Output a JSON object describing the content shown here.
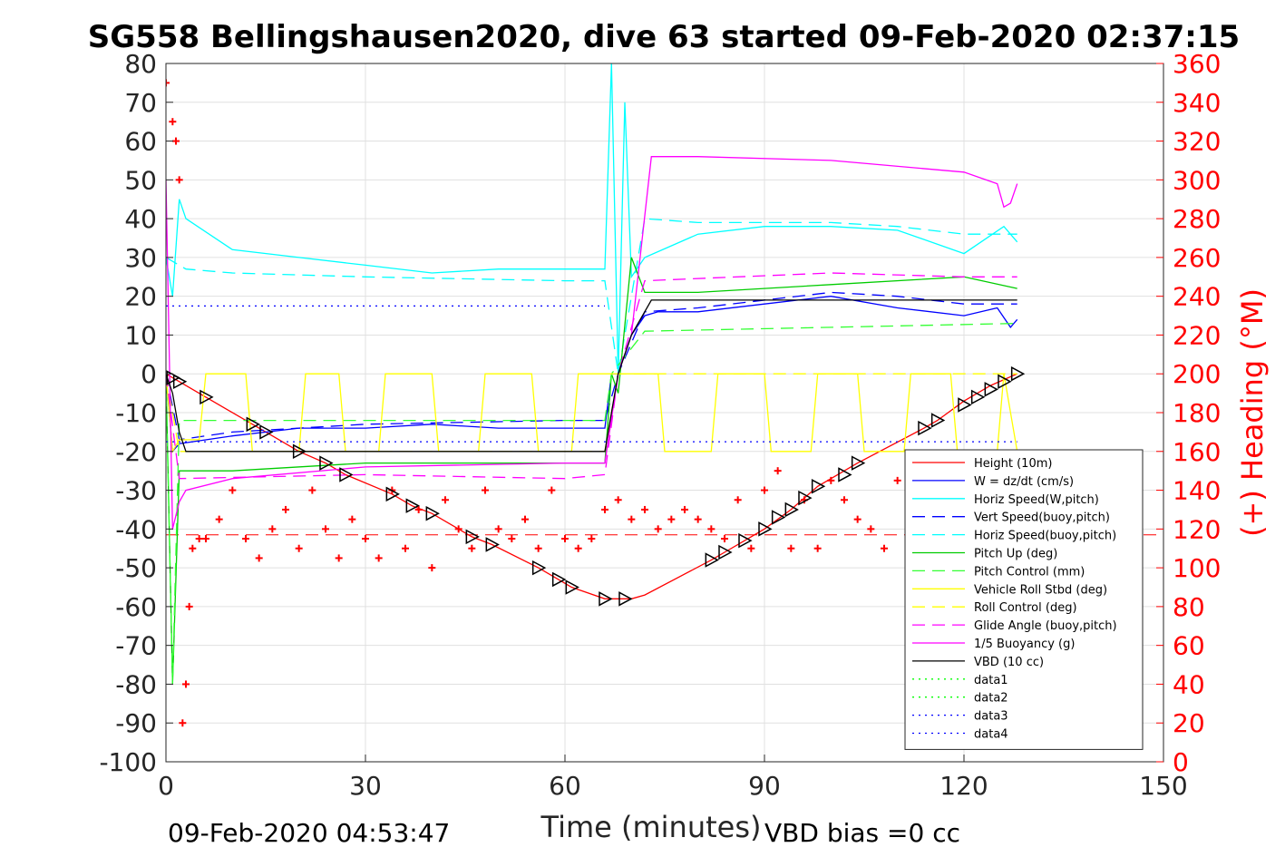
{
  "chart_data": {
    "type": "line",
    "title": "SG558 Bellingshausen2020, dive 63 started 09-Feb-2020 02:37:15",
    "xlabel": "Time (minutes)",
    "ylabel": "",
    "y2label": "(+) Heading (°M)",
    "xlim": [
      0,
      150
    ],
    "ylim": [
      -100,
      80
    ],
    "y2lim": [
      0,
      360
    ],
    "xticks": [
      "0",
      "30",
      "60",
      "90",
      "120",
      "150"
    ],
    "yticks": [
      "80",
      "70",
      "60",
      "50",
      "40",
      "30",
      "20",
      "10",
      "0",
      "-10",
      "-20",
      "-30",
      "-40",
      "-50",
      "-60",
      "-70",
      "-80",
      "-90",
      "-100"
    ],
    "y2ticks": [
      "360",
      "340",
      "320",
      "300",
      "280",
      "260",
      "240",
      "220",
      "200",
      "180",
      "160",
      "140",
      "120",
      "100",
      "80",
      "60",
      "40",
      "20",
      "0"
    ],
    "grid": true,
    "legend_position": "bottom-right",
    "footer_left": "09-Feb-2020 04:53:47",
    "footer_right": "VBD bias =0 cc",
    "series": [
      {
        "name": "Height (10m)",
        "color": "#ff0000",
        "style": "solid",
        "x": [
          0,
          1,
          2,
          6,
          14,
          20,
          24,
          27,
          34,
          37,
          40,
          46,
          49,
          56,
          59,
          61,
          66,
          68,
          70,
          72,
          82,
          84,
          87,
          90,
          94,
          98,
          104,
          114,
          116,
          120,
          124,
          128
        ],
        "values": [
          0,
          -1,
          -2,
          -6,
          -14,
          -20,
          -23,
          -26,
          -31,
          -34,
          -36,
          -42,
          -44,
          -50,
          -53,
          -55,
          -58,
          -58,
          -58,
          -57,
          -48,
          -46,
          -43,
          -40,
          -35,
          -29,
          -23,
          -14,
          -12,
          -7,
          -3,
          0
        ]
      },
      {
        "name": "W = dz/dt (cm/s)",
        "color": "#0000ff",
        "style": "solid",
        "x": [
          0,
          1,
          2,
          10,
          20,
          30,
          40,
          50,
          60,
          66,
          67,
          68,
          70,
          72,
          74,
          80,
          90,
          100,
          110,
          120,
          125,
          127,
          128
        ],
        "values": [
          0,
          -20,
          -18,
          -16,
          -14,
          -14,
          -13,
          -14,
          -14,
          -14,
          0,
          0,
          10,
          15,
          16,
          16,
          18,
          20,
          17,
          15,
          17,
          12,
          14
        ]
      },
      {
        "name": "Horiz Speed(W,pitch)",
        "color": "#00ffff",
        "style": "solid",
        "x": [
          0,
          1,
          2,
          3,
          10,
          20,
          30,
          40,
          50,
          60,
          66,
          67,
          68,
          69,
          70,
          72,
          80,
          90,
          100,
          110,
          120,
          126,
          128
        ],
        "values": [
          30,
          20,
          45,
          40,
          32,
          30,
          28,
          26,
          27,
          27,
          27,
          80,
          0,
          70,
          25,
          30,
          36,
          38,
          38,
          37,
          31,
          38,
          34
        ]
      },
      {
        "name": "Vert Speed(buoy,pitch)",
        "color": "#0000ff",
        "style": "dashed",
        "x": [
          0,
          2,
          10,
          30,
          60,
          66,
          68,
          72,
          80,
          100,
          110,
          120,
          128
        ],
        "values": [
          0,
          -17,
          -15,
          -13,
          -12,
          -12,
          0,
          16,
          17,
          21,
          20,
          18,
          18
        ]
      },
      {
        "name": "Horiz Speed(buoy,pitch)",
        "color": "#00ffff",
        "style": "dashed",
        "x": [
          0,
          2,
          3,
          10,
          30,
          60,
          66,
          68,
          70,
          72,
          80,
          100,
          110,
          120,
          128
        ],
        "values": [
          30,
          28,
          27,
          26,
          25,
          24,
          24,
          0,
          20,
          40,
          39,
          39,
          38,
          36,
          36
        ]
      },
      {
        "name": "Pitch Up (deg)",
        "color": "#00cc00",
        "style": "solid",
        "x": [
          0,
          1,
          2,
          10,
          30,
          60,
          66,
          67,
          68,
          70,
          72,
          80,
          100,
          120,
          128
        ],
        "values": [
          0,
          -80,
          -25,
          -25,
          -23,
          -23,
          -23,
          0,
          -5,
          30,
          21,
          21,
          23,
          25,
          22
        ]
      },
      {
        "name": "Pitch Control (mm)",
        "color": "#33ff33",
        "style": "dashed",
        "x": [
          0,
          1,
          2,
          66,
          67,
          72,
          128
        ],
        "values": [
          0,
          -80,
          -12,
          -12,
          0,
          11,
          13
        ]
      },
      {
        "name": "Vehicle Roll Stbd (deg)",
        "color": "#ffff00",
        "style": "solid",
        "x": [
          0,
          1,
          2,
          5,
          6,
          12,
          13,
          20,
          21,
          26,
          27,
          32,
          33,
          40,
          41,
          47,
          48,
          55,
          56,
          61,
          62,
          66,
          67,
          74,
          75,
          82,
          83,
          90,
          91,
          97,
          98,
          104,
          105,
          111,
          112,
          118,
          119,
          125,
          126,
          128
        ],
        "values": [
          0,
          -20,
          -17,
          -17,
          0,
          0,
          -20,
          -20,
          0,
          0,
          -20,
          -20,
          0,
          0,
          -20,
          -20,
          0,
          0,
          -20,
          -20,
          0,
          0,
          0,
          0,
          -20,
          -20,
          0,
          0,
          -20,
          -20,
          0,
          0,
          -20,
          -20,
          0,
          0,
          -20,
          -20,
          0,
          -20
        ]
      },
      {
        "name": "Roll Control (deg)",
        "color": "#ffff00",
        "style": "dashed",
        "x": [
          0,
          2,
          30,
          60,
          66,
          68,
          100,
          128
        ],
        "values": [
          0,
          -20,
          -20,
          -20,
          -20,
          0,
          0,
          0
        ]
      },
      {
        "name": "Glide Angle (buoy,pitch)",
        "color": "#ff00ff",
        "style": "dashed",
        "x": [
          0,
          2,
          30,
          60,
          66,
          68,
          72,
          100,
          120,
          128
        ],
        "values": [
          0,
          -27,
          -26,
          -27,
          -26,
          0,
          24,
          26,
          25,
          25
        ]
      },
      {
        "name": "1/5 Buoyancy (g)",
        "color": "#ff00ff",
        "style": "solid",
        "x": [
          0,
          1,
          2,
          3,
          10,
          30,
          60,
          66,
          68,
          70,
          73,
          80,
          100,
          120,
          125,
          126,
          127,
          128
        ],
        "values": [
          50,
          -40,
          -33,
          -30,
          -27,
          -24,
          -23,
          -23,
          0,
          10,
          56,
          56,
          55,
          52,
          49,
          43,
          44,
          49
        ]
      },
      {
        "name": "VBD (10 cc)",
        "color": "#000000",
        "style": "solid",
        "x": [
          0,
          1,
          2,
          3,
          66,
          67,
          68,
          70,
          73,
          80,
          110,
          128
        ],
        "values": [
          0,
          -5,
          -15,
          -20,
          -20,
          -10,
          0,
          10,
          19,
          19,
          19,
          19
        ]
      },
      {
        "name": "data1",
        "color": "#00ff00",
        "style": "dotted",
        "x": [],
        "values": []
      },
      {
        "name": "data2",
        "color": "#00ff00",
        "style": "dotted",
        "x": [],
        "values": []
      },
      {
        "name": "data3",
        "color": "#0000ff",
        "style": "dotted",
        "x": [
          0,
          66
        ],
        "values": [
          17.5,
          17.5
        ]
      },
      {
        "name": "data4",
        "color": "#0000ff",
        "style": "dotted",
        "x": [
          0,
          128
        ],
        "values": [
          -17.5,
          -17.5
        ]
      }
    ],
    "heading": {
      "axis": "right",
      "color": "#ff0000",
      "marker": "+",
      "x": [
        0,
        1,
        1.5,
        2,
        2.5,
        3,
        3.5,
        4,
        5,
        6,
        8,
        10,
        12,
        14,
        16,
        18,
        20,
        22,
        24,
        26,
        28,
        30,
        32,
        34,
        36,
        38,
        40,
        42,
        44,
        46,
        48,
        50,
        52,
        54,
        56,
        58,
        60,
        62,
        64,
        66,
        68,
        70,
        72,
        74,
        76,
        78,
        80,
        82,
        84,
        86,
        88,
        90,
        92,
        94,
        96,
        98,
        100,
        102,
        104,
        106,
        108,
        110,
        112,
        114,
        116,
        118,
        120,
        122,
        124,
        126,
        128
      ],
      "values": [
        350,
        330,
        320,
        300,
        20,
        40,
        80,
        110,
        115,
        115,
        125,
        140,
        115,
        105,
        120,
        130,
        110,
        140,
        120,
        105,
        125,
        115,
        105,
        140,
        110,
        130,
        100,
        135,
        120,
        110,
        140,
        120,
        115,
        125,
        110,
        140,
        115,
        110,
        115,
        130,
        135,
        125,
        130,
        120,
        125,
        130,
        125,
        120,
        115,
        135,
        110,
        140,
        150,
        110,
        135,
        110,
        145,
        135,
        125,
        120,
        110,
        145,
        95,
        130,
        120,
        115,
        125,
        110,
        120,
        130,
        150
      ]
    },
    "markers": {
      "axis": "left",
      "color": "#000000",
      "shape": "triangle",
      "x": [
        1,
        2,
        6,
        13,
        15,
        20,
        24,
        27,
        34,
        37,
        40,
        46,
        49,
        56,
        59,
        61,
        66,
        69,
        82,
        84,
        87,
        90,
        92,
        94,
        96,
        98,
        102,
        104,
        114,
        116,
        120,
        122,
        124,
        126,
        128
      ],
      "values": [
        -1,
        -2,
        -6,
        -13,
        -15,
        -20,
        -23,
        -26,
        -31,
        -34,
        -36,
        -42,
        -44,
        -50,
        -53,
        -55,
        -58,
        -58,
        -48,
        -46,
        -43,
        -40,
        -37,
        -35,
        -32,
        -29,
        -26,
        -23,
        -14,
        -12,
        -8,
        -6,
        -4,
        -2,
        0
      ]
    },
    "ref_lines": [
      {
        "axis": "left",
        "y": -41.5,
        "color": "#ff0000",
        "style": "dashed"
      }
    ]
  }
}
